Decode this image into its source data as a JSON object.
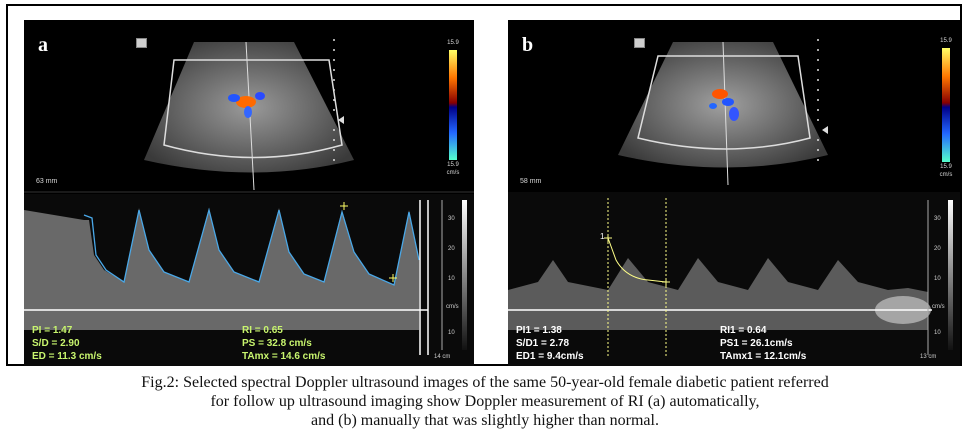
{
  "panel_a": {
    "label": "a",
    "depth": "63 mm",
    "colorbar_top": "15.9",
    "colorbar_bottom": "15.9",
    "colorbar_unit": "cm/s",
    "scale_ticks": [
      "30",
      "20",
      "10",
      "cm/s",
      "10"
    ],
    "scale_depth": "14 cm",
    "measurements_left": [
      "PI = 1.47",
      "S/D = 2.90",
      "ED = 11.3 cm/s"
    ],
    "measurements_right": [
      "RI = 0.65",
      "PS = 32.8 cm/s",
      "TAmx = 14.6 cm/s"
    ]
  },
  "panel_b": {
    "label": "b",
    "depth": "58 mm",
    "colorbar_top": "15.9",
    "colorbar_bottom": "15.9",
    "colorbar_unit": "cm/s",
    "scale_ticks": [
      "30",
      "20",
      "10",
      "cm/s",
      "10"
    ],
    "scale_depth": "13 cm",
    "cursor_marker": "1",
    "measurements_left": [
      "PI1 = 1.38",
      "S/D1 = 2.78",
      "ED1 = 9.4cm/s"
    ],
    "measurements_right": [
      "RI1 = 0.64",
      "PS1 = 26.1cm/s",
      "TAmx1 = 12.1cm/s"
    ]
  },
  "caption": {
    "line1": "Fig.2: Selected spectral Doppler ultrasound images of the same 50-year-old female diabetic patient referred",
    "line2": "for follow up ultrasound imaging show Doppler measurement of RI (a) automatically,",
    "line3": "and (b) manually that was slightly higher than normal."
  }
}
